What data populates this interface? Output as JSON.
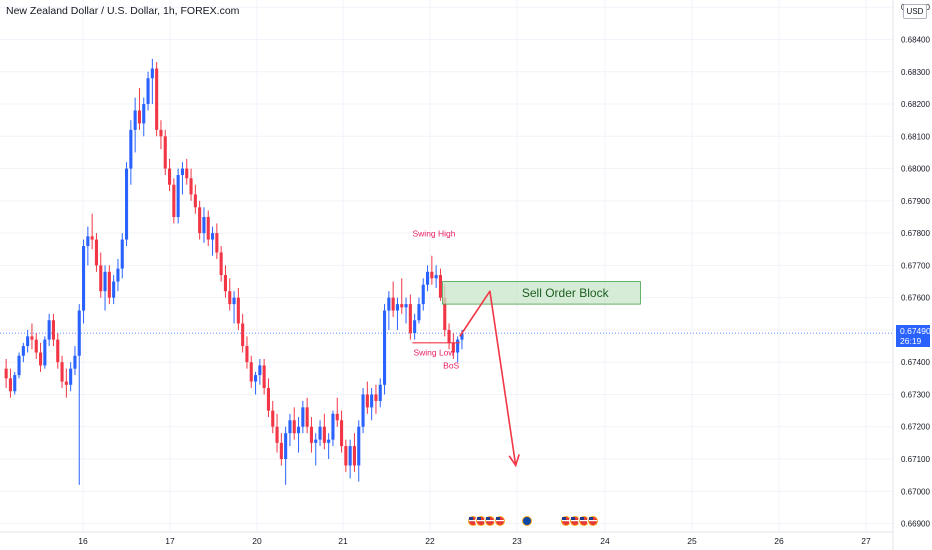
{
  "header": {
    "title": "New Zealand Dollar / U.S. Dollar, 1h, FOREX.com",
    "currency_badge": "USD"
  },
  "price_tag": {
    "price": "0.67490",
    "countdown": "26:19",
    "color": "#2962ff"
  },
  "colors": {
    "up": "#2962ff",
    "down": "#f23645",
    "arrow": "#f23645",
    "order_block_fill": "#c8e6c9",
    "order_block_border": "#43a047",
    "label_pink": "#e91e63"
  },
  "event_icons": [
    "us-flag-icon",
    "us-flag-icon",
    "us-flag-icon",
    "us-flag-icon",
    "moon-icon",
    "us-flag-icon",
    "us-flag-icon",
    "us-flag-icon",
    "us-flag-icon"
  ],
  "chart_data": {
    "type": "candlestick",
    "title": "New Zealand Dollar / U.S. Dollar, 1h, FOREX.com",
    "xlabel": "",
    "ylabel": "",
    "ylim": [
      0.6688,
      0.6851
    ],
    "y_ticks": [
      "0.68500",
      "0.68400",
      "0.68300",
      "0.68200",
      "0.68100",
      "0.68000",
      "0.67900",
      "0.67800",
      "0.67700",
      "0.67600",
      "0.67500",
      "0.67400",
      "0.67300",
      "0.67200",
      "0.67100",
      "0.67000",
      "0.66900"
    ],
    "x_ticks": [
      "16",
      "17",
      "20",
      "21",
      "22",
      "23",
      "24",
      "25",
      "26",
      "27"
    ],
    "last_price": 0.6749,
    "grid": true,
    "candles": [
      [
        0.6738,
        0.6741,
        0.6732,
        0.6735
      ],
      [
        0.6735,
        0.6738,
        0.6729,
        0.6731
      ],
      [
        0.6731,
        0.6737,
        0.673,
        0.6736
      ],
      [
        0.6736,
        0.6743,
        0.6735,
        0.6742
      ],
      [
        0.6742,
        0.6746,
        0.674,
        0.6745
      ],
      [
        0.6745,
        0.675,
        0.6743,
        0.6748
      ],
      [
        0.6748,
        0.6752,
        0.6744,
        0.6747
      ],
      [
        0.6747,
        0.6749,
        0.6741,
        0.6743
      ],
      [
        0.6743,
        0.6746,
        0.6737,
        0.6739
      ],
      [
        0.6739,
        0.6748,
        0.6738,
        0.6747
      ],
      [
        0.6747,
        0.6755,
        0.6745,
        0.6753
      ],
      [
        0.6753,
        0.6755,
        0.6745,
        0.6747
      ],
      [
        0.6747,
        0.6749,
        0.6738,
        0.674
      ],
      [
        0.674,
        0.6742,
        0.6732,
        0.6734
      ],
      [
        0.6734,
        0.6738,
        0.6729,
        0.6733
      ],
      [
        0.6733,
        0.674,
        0.6731,
        0.6738
      ],
      [
        0.6738,
        0.6745,
        0.6736,
        0.6742
      ],
      [
        0.6742,
        0.6758,
        0.6702,
        0.6756
      ],
      [
        0.6756,
        0.6778,
        0.6752,
        0.6776
      ],
      [
        0.6776,
        0.6782,
        0.677,
        0.6779
      ],
      [
        0.6779,
        0.6786,
        0.6775,
        0.6778
      ],
      [
        0.6778,
        0.678,
        0.6768,
        0.677
      ],
      [
        0.677,
        0.6774,
        0.676,
        0.6762
      ],
      [
        0.6762,
        0.677,
        0.6756,
        0.6768
      ],
      [
        0.6768,
        0.677,
        0.6758,
        0.676
      ],
      [
        0.676,
        0.6767,
        0.6758,
        0.6765
      ],
      [
        0.6765,
        0.6772,
        0.6762,
        0.6769
      ],
      [
        0.6769,
        0.678,
        0.6766,
        0.6778
      ],
      [
        0.6778,
        0.6802,
        0.6776,
        0.68
      ],
      [
        0.68,
        0.6815,
        0.6795,
        0.6812
      ],
      [
        0.6812,
        0.6822,
        0.6805,
        0.6818
      ],
      [
        0.6818,
        0.6825,
        0.6812,
        0.6814
      ],
      [
        0.6814,
        0.6822,
        0.681,
        0.682
      ],
      [
        0.682,
        0.683,
        0.6818,
        0.6828
      ],
      [
        0.6828,
        0.6834,
        0.682,
        0.6831
      ],
      [
        0.6831,
        0.6833,
        0.681,
        0.6812
      ],
      [
        0.6812,
        0.6815,
        0.6806,
        0.681
      ],
      [
        0.681,
        0.6812,
        0.6798,
        0.68
      ],
      [
        0.68,
        0.6803,
        0.6793,
        0.6795
      ],
      [
        0.6795,
        0.6797,
        0.6783,
        0.6785
      ],
      [
        0.6785,
        0.68,
        0.6783,
        0.6798
      ],
      [
        0.6798,
        0.6802,
        0.6792,
        0.68
      ],
      [
        0.68,
        0.6803,
        0.6795,
        0.6797
      ],
      [
        0.6797,
        0.68,
        0.679,
        0.6792
      ],
      [
        0.6792,
        0.6795,
        0.6786,
        0.6788
      ],
      [
        0.6788,
        0.679,
        0.6778,
        0.678
      ],
      [
        0.678,
        0.6788,
        0.6777,
        0.6785
      ],
      [
        0.6785,
        0.6787,
        0.6776,
        0.6778
      ],
      [
        0.6778,
        0.6782,
        0.6773,
        0.678
      ],
      [
        0.678,
        0.6783,
        0.6772,
        0.6774
      ],
      [
        0.6774,
        0.6776,
        0.6765,
        0.6767
      ],
      [
        0.6767,
        0.677,
        0.676,
        0.6762
      ],
      [
        0.6762,
        0.6766,
        0.6756,
        0.6758
      ],
      [
        0.6758,
        0.6762,
        0.6752,
        0.676
      ],
      [
        0.676,
        0.6763,
        0.675,
        0.6752
      ],
      [
        0.6752,
        0.6755,
        0.6743,
        0.6745
      ],
      [
        0.6745,
        0.6748,
        0.6738,
        0.674
      ],
      [
        0.674,
        0.6742,
        0.6732,
        0.6734
      ],
      [
        0.6734,
        0.6737,
        0.673,
        0.6736
      ],
      [
        0.6736,
        0.6741,
        0.6733,
        0.6739
      ],
      [
        0.6739,
        0.6741,
        0.673,
        0.6732
      ],
      [
        0.6732,
        0.6735,
        0.6723,
        0.6725
      ],
      [
        0.6725,
        0.6728,
        0.6718,
        0.672
      ],
      [
        0.672,
        0.6724,
        0.6712,
        0.6715
      ],
      [
        0.6715,
        0.6718,
        0.6708,
        0.671
      ],
      [
        0.671,
        0.672,
        0.6702,
        0.6718
      ],
      [
        0.6718,
        0.6724,
        0.6714,
        0.6722
      ],
      [
        0.6722,
        0.6726,
        0.6716,
        0.6718
      ],
      [
        0.6718,
        0.6723,
        0.6712,
        0.672
      ],
      [
        0.672,
        0.6728,
        0.6718,
        0.6726
      ],
      [
        0.6726,
        0.6729,
        0.6718,
        0.672
      ],
      [
        0.672,
        0.6723,
        0.6712,
        0.6715
      ],
      [
        0.6715,
        0.6718,
        0.6708,
        0.6716
      ],
      [
        0.6716,
        0.6722,
        0.6714,
        0.672
      ],
      [
        0.672,
        0.6724,
        0.6713,
        0.6715
      ],
      [
        0.6715,
        0.6718,
        0.671,
        0.6716
      ],
      [
        0.6716,
        0.6725,
        0.6714,
        0.6724
      ],
      [
        0.6724,
        0.6729,
        0.672,
        0.6722
      ],
      [
        0.6722,
        0.6725,
        0.6712,
        0.6714
      ],
      [
        0.6714,
        0.6716,
        0.6706,
        0.6708
      ],
      [
        0.6708,
        0.6716,
        0.6704,
        0.6714
      ],
      [
        0.6714,
        0.6718,
        0.6706,
        0.6708
      ],
      [
        0.6708,
        0.6722,
        0.6703,
        0.672
      ],
      [
        0.672,
        0.6732,
        0.6718,
        0.673
      ],
      [
        0.673,
        0.6734,
        0.6724,
        0.6726
      ],
      [
        0.6726,
        0.6732,
        0.6722,
        0.673
      ],
      [
        0.673,
        0.6733,
        0.6724,
        0.6728
      ],
      [
        0.6728,
        0.6735,
        0.6726,
        0.6733
      ],
      [
        0.6733,
        0.6758,
        0.673,
        0.6756
      ],
      [
        0.6756,
        0.6762,
        0.675,
        0.676
      ],
      [
        0.676,
        0.6765,
        0.6754,
        0.6756
      ],
      [
        0.6756,
        0.676,
        0.675,
        0.6758
      ],
      [
        0.6758,
        0.6766,
        0.6755,
        0.6757
      ],
      [
        0.6757,
        0.676,
        0.6752,
        0.6758
      ],
      [
        0.6758,
        0.6761,
        0.6747,
        0.6749
      ],
      [
        0.6749,
        0.6755,
        0.6747,
        0.6753
      ],
      [
        0.6753,
        0.676,
        0.6752,
        0.6758
      ],
      [
        0.6758,
        0.6766,
        0.6756,
        0.6764
      ],
      [
        0.6764,
        0.677,
        0.6762,
        0.6768
      ],
      [
        0.6768,
        0.6773,
        0.6764,
        0.6766
      ],
      [
        0.6766,
        0.677,
        0.6763,
        0.6767
      ],
      [
        0.6767,
        0.6769,
        0.6759,
        0.676
      ],
      [
        0.676,
        0.6764,
        0.6748,
        0.675
      ],
      [
        0.675,
        0.6752,
        0.6744,
        0.6746
      ],
      [
        0.6746,
        0.6749,
        0.6741,
        0.6743
      ],
      [
        0.6743,
        0.6748,
        0.674,
        0.6747
      ],
      [
        0.6747,
        0.675,
        0.6744,
        0.6749
      ]
    ],
    "annotations": [
      {
        "type": "text",
        "text": "Swing High",
        "x_index": 100,
        "y": 0.6779,
        "color": "#e91e63"
      },
      {
        "type": "text",
        "text": "Swing Low",
        "x_index": 100,
        "y": 0.6742,
        "color": "#e91e63"
      },
      {
        "type": "text",
        "text": "BoS",
        "x_index": 104,
        "y": 0.6738,
        "color": "#e91e63"
      },
      {
        "type": "hline",
        "y": 0.6746,
        "x_index_start": 95,
        "x_index_end": 106,
        "color": "#f23645"
      },
      {
        "type": "rectangle",
        "text": "Sell Order Block",
        "y_top": 0.6765,
        "y_bottom": 0.6758,
        "x_index_start": 102,
        "x_index_end": 148
      },
      {
        "type": "arrow_path",
        "points": [
          [
            106,
            0.6748
          ],
          [
            113,
            0.6762
          ],
          [
            119,
            0.6708
          ]
        ],
        "color": "#f23645"
      }
    ]
  }
}
